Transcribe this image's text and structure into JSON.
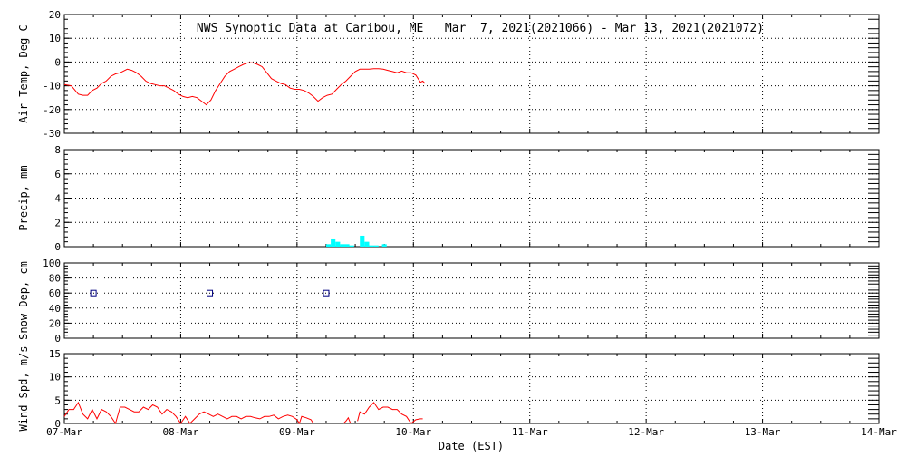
{
  "title": "NWS Synoptic Data at Caribou, ME   Mar  7, 2021(2021066) - Mar 13, 2021(2021072)",
  "xlabel": "Date (EST)",
  "x_ticks": [
    "07-Mar",
    "08-Mar",
    "09-Mar",
    "10-Mar",
    "11-Mar",
    "12-Mar",
    "13-Mar",
    "14-Mar"
  ],
  "chart_data": [
    {
      "type": "line",
      "ylabel": "Air Temp, Deg C",
      "ylim": [
        -30,
        20
      ],
      "y_ticks": [
        20,
        10,
        0,
        -10,
        -20,
        -30
      ],
      "x_unit": "days since 07-Mar 00:00",
      "color": "#ff0000",
      "series": [
        {
          "points": [
            [
              0.0,
              -9.5
            ],
            [
              0.06,
              -10
            ],
            [
              0.12,
              -13.5
            ],
            [
              0.16,
              -14
            ],
            [
              0.2,
              -14
            ],
            [
              0.24,
              -12
            ],
            [
              0.28,
              -11
            ],
            [
              0.32,
              -9
            ],
            [
              0.36,
              -8
            ],
            [
              0.4,
              -6
            ],
            [
              0.44,
              -5
            ],
            [
              0.48,
              -4.5
            ],
            [
              0.5,
              -4
            ],
            [
              0.54,
              -3
            ],
            [
              0.58,
              -3.5
            ],
            [
              0.62,
              -4.5
            ],
            [
              0.66,
              -6
            ],
            [
              0.7,
              -8
            ],
            [
              0.74,
              -9
            ],
            [
              0.78,
              -9.5
            ],
            [
              0.82,
              -10
            ],
            [
              0.86,
              -10
            ],
            [
              0.9,
              -11
            ],
            [
              0.94,
              -12
            ],
            [
              0.98,
              -13.5
            ],
            [
              1.02,
              -14.5
            ],
            [
              1.06,
              -15
            ],
            [
              1.1,
              -14.5
            ],
            [
              1.14,
              -15
            ],
            [
              1.18,
              -16.5
            ],
            [
              1.22,
              -18
            ],
            [
              1.26,
              -16
            ],
            [
              1.3,
              -12
            ],
            [
              1.34,
              -9
            ],
            [
              1.38,
              -6
            ],
            [
              1.42,
              -4
            ],
            [
              1.46,
              -3
            ],
            [
              1.5,
              -2
            ],
            [
              1.54,
              -1
            ],
            [
              1.58,
              -0.3
            ],
            [
              1.62,
              -0.3
            ],
            [
              1.66,
              -1
            ],
            [
              1.7,
              -2
            ],
            [
              1.74,
              -4.5
            ],
            [
              1.78,
              -7
            ],
            [
              1.82,
              -8
            ],
            [
              1.86,
              -9
            ],
            [
              1.9,
              -9.5
            ],
            [
              1.94,
              -11
            ],
            [
              1.98,
              -11.5
            ],
            [
              2.02,
              -11.5
            ],
            [
              2.06,
              -12
            ],
            [
              2.1,
              -13
            ],
            [
              2.14,
              -14.5
            ],
            [
              2.18,
              -16.5
            ],
            [
              2.22,
              -15
            ],
            [
              2.26,
              -14
            ],
            [
              2.3,
              -13.5
            ],
            [
              2.34,
              -11.5
            ],
            [
              2.38,
              -9.5
            ],
            [
              2.42,
              -8
            ],
            [
              2.46,
              -6
            ],
            [
              2.5,
              -4
            ],
            [
              2.54,
              -3
            ],
            [
              2.58,
              -3
            ],
            [
              2.62,
              -3
            ],
            [
              2.66,
              -2.8
            ],
            [
              2.7,
              -2.8
            ],
            [
              2.74,
              -3
            ],
            [
              2.78,
              -3.5
            ],
            [
              2.82,
              -4
            ],
            [
              2.86,
              -4.5
            ],
            [
              2.9,
              -3.8
            ],
            [
              2.94,
              -4.5
            ],
            [
              2.98,
              -4.5
            ],
            [
              3.02,
              -5.5
            ],
            [
              3.04,
              -7
            ],
            [
              3.06,
              -8.5
            ],
            [
              3.08,
              -8
            ],
            [
              3.1,
              -9
            ]
          ]
        }
      ]
    },
    {
      "type": "bar",
      "ylabel": "Precip, mm",
      "ylim": [
        0,
        8
      ],
      "y_ticks": [
        8,
        6,
        4,
        2,
        0
      ],
      "x_unit": "days since 07-Mar 00:00",
      "color": "#00ffff",
      "series": [
        {
          "points": [
            [
              2.25,
              0.2
            ],
            [
              2.29,
              0.6
            ],
            [
              2.33,
              0.4
            ],
            [
              2.37,
              0.2
            ],
            [
              2.41,
              0.2
            ],
            [
              2.45,
              0.1
            ],
            [
              2.54,
              0.9
            ],
            [
              2.58,
              0.4
            ],
            [
              2.62,
              0.1
            ],
            [
              2.66,
              0.1
            ],
            [
              2.73,
              0.2
            ]
          ]
        }
      ]
    },
    {
      "type": "scatter",
      "ylabel": "Snow Dep, cm",
      "ylim": [
        0,
        100
      ],
      "y_ticks": [
        100,
        80,
        60,
        40,
        20,
        0
      ],
      "x_unit": "days since 07-Mar 00:00",
      "color": "#000080",
      "series": [
        {
          "points": [
            [
              0.25,
              60
            ],
            [
              1.25,
              60
            ],
            [
              2.25,
              60
            ]
          ]
        }
      ]
    },
    {
      "type": "line",
      "ylabel": "Wind Spd, m/s",
      "ylim": [
        0,
        15
      ],
      "y_ticks": [
        15,
        10,
        5,
        0
      ],
      "x_unit": "days since 07-Mar 00:00",
      "color": "#ff0000",
      "series": [
        {
          "points": [
            [
              0.0,
              1.5
            ],
            [
              0.04,
              3
            ],
            [
              0.08,
              3
            ],
            [
              0.12,
              4.5
            ],
            [
              0.16,
              2
            ],
            [
              0.2,
              1
            ],
            [
              0.24,
              3
            ],
            [
              0.28,
              1
            ],
            [
              0.32,
              3
            ],
            [
              0.36,
              2.5
            ],
            [
              0.4,
              1.5
            ],
            [
              0.44,
              0
            ],
            [
              0.48,
              3.5
            ],
            [
              0.52,
              3.5
            ],
            [
              0.56,
              3
            ],
            [
              0.6,
              2.5
            ],
            [
              0.64,
              2.5
            ],
            [
              0.68,
              3.5
            ],
            [
              0.72,
              3
            ],
            [
              0.76,
              4
            ],
            [
              0.8,
              3.5
            ],
            [
              0.84,
              2
            ],
            [
              0.88,
              3
            ],
            [
              0.92,
              2.5
            ],
            [
              0.96,
              1.5
            ],
            [
              1.0,
              0
            ],
            [
              1.04,
              1.5
            ],
            [
              1.08,
              0
            ],
            [
              1.12,
              1
            ],
            [
              1.16,
              2
            ],
            [
              1.2,
              2.5
            ],
            [
              1.24,
              2
            ],
            [
              1.28,
              1.5
            ],
            [
              1.32,
              2
            ],
            [
              1.36,
              1.5
            ],
            [
              1.4,
              1
            ],
            [
              1.44,
              1.5
            ],
            [
              1.48,
              1.5
            ],
            [
              1.52,
              1
            ],
            [
              1.56,
              1.5
            ],
            [
              1.6,
              1.5
            ],
            [
              1.64,
              1.2
            ],
            [
              1.68,
              1
            ],
            [
              1.72,
              1.5
            ],
            [
              1.76,
              1.5
            ],
            [
              1.8,
              1.8
            ],
            [
              1.84,
              1
            ],
            [
              1.88,
              1.5
            ],
            [
              1.92,
              1.8
            ],
            [
              1.96,
              1.5
            ],
            [
              2.0,
              0.8
            ],
            [
              2.02,
              0
            ],
            [
              2.04,
              1.5
            ],
            [
              2.08,
              1.2
            ],
            [
              2.12,
              0.8
            ],
            [
              2.14,
              0
            ]
          ]
        },
        {
          "points": [
            [
              2.4,
              0
            ],
            [
              2.42,
              0.5
            ],
            [
              2.44,
              1.2
            ],
            [
              2.46,
              0
            ]
          ]
        },
        {
          "points": [
            [
              2.52,
              0.5
            ],
            [
              2.54,
              2.5
            ],
            [
              2.58,
              2
            ],
            [
              2.62,
              3.5
            ],
            [
              2.66,
              4.5
            ],
            [
              2.7,
              3
            ],
            [
              2.74,
              3.5
            ],
            [
              2.78,
              3.5
            ],
            [
              2.82,
              3
            ],
            [
              2.86,
              3
            ],
            [
              2.9,
              2
            ],
            [
              2.94,
              1.5
            ],
            [
              2.98,
              0
            ],
            [
              3.02,
              0.8
            ],
            [
              3.06,
              1
            ],
            [
              3.08,
              1
            ]
          ]
        }
      ]
    }
  ]
}
